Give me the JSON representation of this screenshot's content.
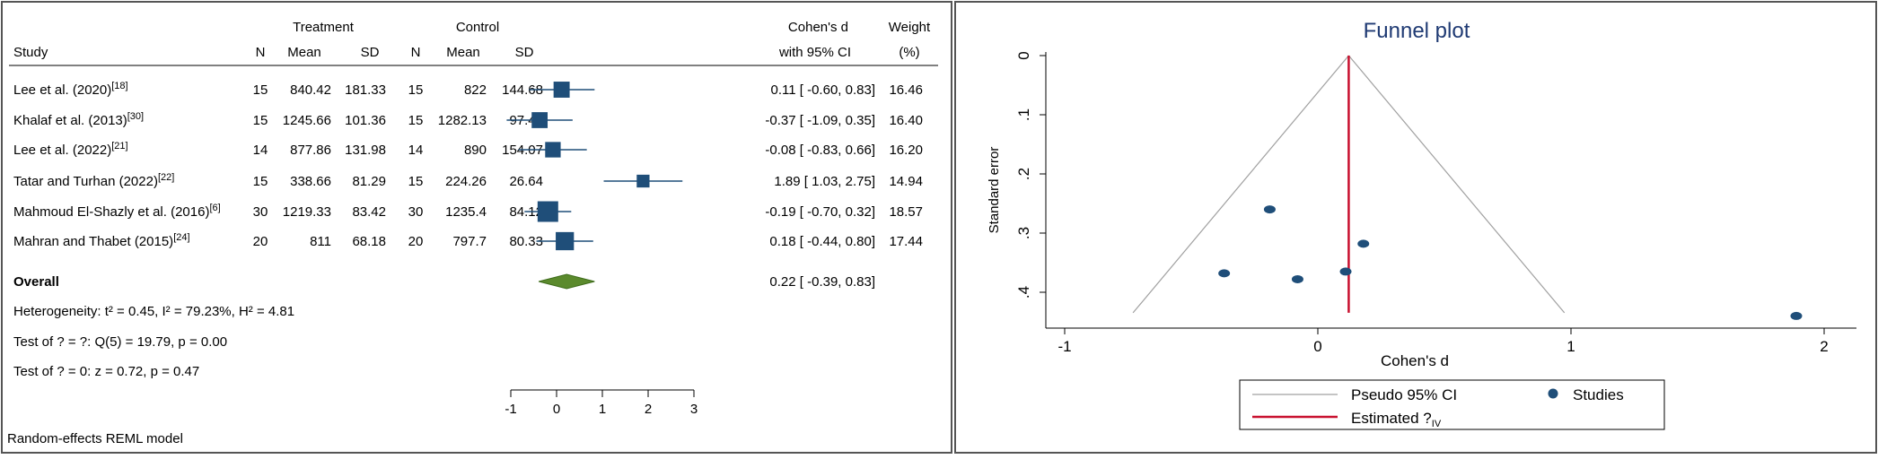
{
  "forest": {
    "header": {
      "treatment": "Treatment",
      "control": "Control",
      "effect_line1": "Cohen's d",
      "effect_line2": "with 95% CI",
      "weight_line1": "Weight",
      "weight_line2": "(%)",
      "study": "Study",
      "n": "N",
      "mean": "Mean",
      "sd": "SD"
    },
    "overall_label": "Overall",
    "stats": [
      "Heterogeneity: t² = 0.45, I² = 79.23%, H² = 4.81",
      "Test of ? = ?: Q(5) = 19.79, p = 0.00",
      "Test of ? = 0: z = 0.72, p = 0.47"
    ],
    "model": "Random-effects REML model"
  },
  "funnel": {
    "title": "Funnel plot",
    "legend": [
      "Pseudo 95% CI",
      "Studies",
      "Estimated ?"
    ],
    "legend_sub": "IV"
  },
  "colors": {
    "square": "#1f4e79",
    "diamond": "#5b8a2d",
    "funnel_line": "#c8102e",
    "funnel_title": "#1f3a73",
    "pseudo_ci": "#a0a0a0"
  },
  "chart_data": [
    {
      "type": "table",
      "chart": "forest plot",
      "studies": [
        {
          "study": "Lee et al. (2020)",
          "ref": "[18]",
          "t_n": 15,
          "t_mean": 840.42,
          "t_sd": 181.33,
          "c_n": 15,
          "c_mean": 822,
          "c_sd": 144.68,
          "d": 0.11,
          "lo": -0.6,
          "hi": 0.83,
          "d_text": "0.11 [ -0.60, 0.83]",
          "weight": 16.46
        },
        {
          "study": "Khalaf et al. (2013)",
          "ref": "[30]",
          "t_n": 15,
          "t_mean": 1245.66,
          "t_sd": 101.36,
          "c_n": 15,
          "c_mean": 1282.13,
          "c_sd": 97.43,
          "d": -0.37,
          "lo": -1.09,
          "hi": 0.35,
          "d_text": "-0.37 [ -1.09, 0.35]",
          "weight": 16.4
        },
        {
          "study": "Lee et al. (2022)",
          "ref": "[21]",
          "t_n": 14,
          "t_mean": 877.86,
          "t_sd": 131.98,
          "c_n": 14,
          "c_mean": 890,
          "c_sd": 154.07,
          "d": -0.08,
          "lo": -0.83,
          "hi": 0.66,
          "d_text": "-0.08 [ -0.83, 0.66]",
          "weight": 16.2
        },
        {
          "study": "Tatar and Turhan (2022)",
          "ref": "[22]",
          "t_n": 15,
          "t_mean": 338.66,
          "t_sd": 81.29,
          "c_n": 15,
          "c_mean": 224.26,
          "c_sd": 26.64,
          "d": 1.89,
          "lo": 1.03,
          "hi": 2.75,
          "d_text": "1.89 [ 1.03, 2.75]",
          "weight": 14.94
        },
        {
          "study": "Mahmoud El-Shazly et al. (2016)",
          "ref": "[6]",
          "t_n": 30,
          "t_mean": 1219.33,
          "t_sd": 83.42,
          "c_n": 30,
          "c_mean": 1235.4,
          "c_sd": 84.12,
          "d": -0.19,
          "lo": -0.7,
          "hi": 0.32,
          "d_text": "-0.19 [ -0.70, 0.32]",
          "weight": 18.57
        },
        {
          "study": "Mahran and Thabet (2015)",
          "ref": "[24]",
          "t_n": 20,
          "t_mean": 811,
          "t_sd": 68.18,
          "c_n": 20,
          "c_mean": 797.7,
          "c_sd": 80.33,
          "d": 0.18,
          "lo": -0.44,
          "hi": 0.8,
          "d_text": "0.18 [ -0.44, 0.80]",
          "weight": 17.44
        }
      ],
      "overall": {
        "d": 0.22,
        "lo": -0.39,
        "hi": 0.83,
        "d_text": "0.22 [ -0.39, 0.83]"
      },
      "xlim": [
        -1,
        3
      ],
      "xticks": [
        -1,
        0,
        1,
        2,
        3
      ]
    },
    {
      "type": "scatter",
      "title": "Funnel plot",
      "xlabel": "Cohen's d",
      "ylabel": "Standard error",
      "xlim": [
        -1.05,
        2.05
      ],
      "ylim": [
        0,
        0.44
      ],
      "y_reversed": true,
      "xticks": [
        -1,
        0,
        1,
        2
      ],
      "yticks": [
        0,
        0.1,
        0.2,
        0.3,
        0.4
      ],
      "ytick_labels": [
        "0",
        ".1",
        ".2",
        ".3",
        ".4"
      ],
      "points": [
        {
          "x": 0.11,
          "y": 0.365
        },
        {
          "x": -0.37,
          "y": 0.368
        },
        {
          "x": -0.08,
          "y": 0.378
        },
        {
          "x": 1.89,
          "y": 0.44
        },
        {
          "x": -0.19,
          "y": 0.26
        },
        {
          "x": 0.18,
          "y": 0.318
        }
      ],
      "estimate": 0.122,
      "pseudo_ci_ymax": 0.44
    }
  ]
}
